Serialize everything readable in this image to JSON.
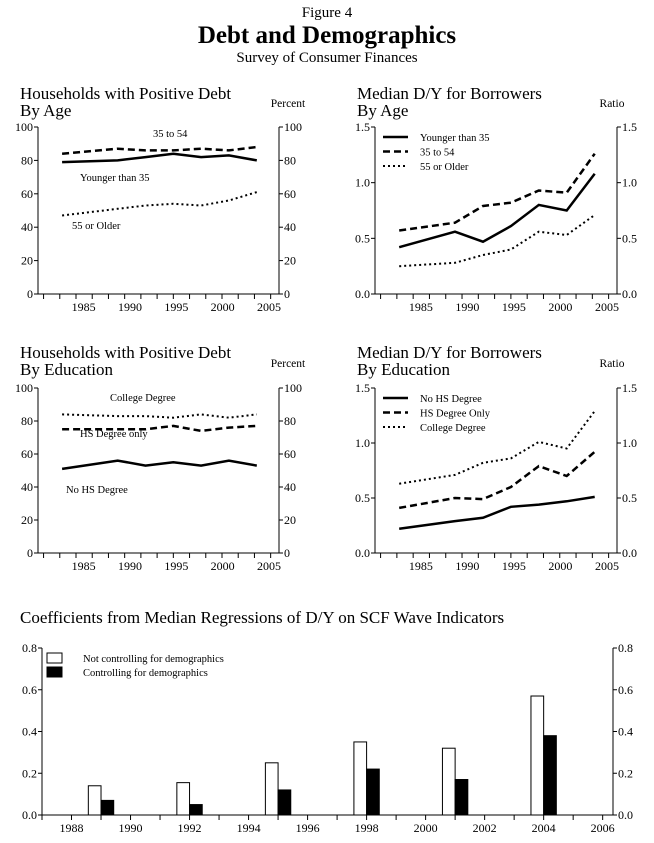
{
  "figure": {
    "label": "Figure 4",
    "title": "Debt and Demographics",
    "subtitle": "Survey of Consumer Finances"
  },
  "chart_data": [
    {
      "type": "line",
      "title": [
        "Households with Positive Debt",
        "By Age"
      ],
      "unit_label": "Percent",
      "ylim": [
        0,
        100
      ],
      "yticks": [
        "0",
        "20",
        "40",
        "60",
        "80",
        "100"
      ],
      "ytick_values": [
        0,
        20,
        40,
        60,
        80,
        100
      ],
      "xticks": [
        "1985",
        "1990",
        "1995",
        "2000",
        "2005"
      ],
      "xtick_values": [
        1985,
        1990,
        1995,
        2000,
        2005
      ],
      "x": [
        1983,
        1989,
        1992,
        1995,
        1998,
        2001,
        2004
      ],
      "legend": "inline-labels",
      "series": [
        {
          "name": "35 to 54",
          "style": "dashed",
          "values": [
            84,
            87,
            86,
            86,
            87,
            86,
            88
          ]
        },
        {
          "name": "Younger than 35",
          "style": "solid",
          "values": [
            79,
            80,
            82,
            84,
            82,
            83,
            80
          ]
        },
        {
          "name": "55 or Older",
          "style": "dotted",
          "values": [
            47,
            51,
            53,
            54,
            53,
            56,
            61
          ]
        }
      ]
    },
    {
      "type": "line",
      "title": [
        "Median D/Y for Borrowers",
        "By Age"
      ],
      "unit_label": "Ratio",
      "ylim": [
        0,
        1.5
      ],
      "yticks": [
        "0.0",
        "0.5",
        "1.0",
        "1.5"
      ],
      "ytick_values": [
        0,
        0.5,
        1.0,
        1.5
      ],
      "xticks": [
        "1985",
        "1990",
        "1995",
        "2000",
        "2005"
      ],
      "xtick_values": [
        1985,
        1990,
        1995,
        2000,
        2005
      ],
      "x": [
        1983,
        1989,
        1992,
        1995,
        1998,
        2001,
        2004
      ],
      "legend": "top-left",
      "series": [
        {
          "name": "Younger than 35",
          "style": "solid",
          "values": [
            0.42,
            0.56,
            0.47,
            0.61,
            0.8,
            0.75,
            1.08
          ]
        },
        {
          "name": "35 to 54",
          "style": "dashed",
          "values": [
            0.57,
            0.64,
            0.79,
            0.82,
            0.93,
            0.91,
            1.26
          ]
        },
        {
          "name": "55 or Older",
          "style": "dotted",
          "values": [
            0.25,
            0.28,
            0.35,
            0.4,
            0.56,
            0.53,
            0.71
          ]
        }
      ]
    },
    {
      "type": "line",
      "title": [
        "Households with Positive Debt",
        "By Education"
      ],
      "unit_label": "Percent",
      "ylim": [
        0,
        100
      ],
      "yticks": [
        "0",
        "20",
        "40",
        "60",
        "80",
        "100"
      ],
      "ytick_values": [
        0,
        20,
        40,
        60,
        80,
        100
      ],
      "xticks": [
        "1985",
        "1990",
        "1995",
        "2000",
        "2005"
      ],
      "xtick_values": [
        1985,
        1990,
        1995,
        2000,
        2005
      ],
      "x": [
        1983,
        1989,
        1992,
        1995,
        1998,
        2001,
        2004
      ],
      "legend": "inline-labels",
      "series": [
        {
          "name": "College Degree",
          "style": "dotted",
          "values": [
            84,
            83,
            83,
            82,
            84,
            82,
            84
          ]
        },
        {
          "name": "HS Degree only",
          "style": "dashed",
          "values": [
            75,
            75,
            75,
            77,
            74,
            76,
            77
          ]
        },
        {
          "name": "No HS Degree",
          "style": "solid",
          "values": [
            51,
            56,
            53,
            55,
            53,
            56,
            53
          ]
        }
      ]
    },
    {
      "type": "line",
      "title": [
        "Median D/Y for Borrowers",
        "By Education"
      ],
      "unit_label": "Ratio",
      "ylim": [
        0,
        1.5
      ],
      "yticks": [
        "0.0",
        "0.5",
        "1.0",
        "1.5"
      ],
      "ytick_values": [
        0,
        0.5,
        1.0,
        1.5
      ],
      "xticks": [
        "1985",
        "1990",
        "1995",
        "2000",
        "2005"
      ],
      "xtick_values": [
        1985,
        1990,
        1995,
        2000,
        2005
      ],
      "x": [
        1983,
        1989,
        1992,
        1995,
        1998,
        2001,
        2004
      ],
      "legend": "top-left",
      "series": [
        {
          "name": "No HS Degree",
          "style": "solid",
          "values": [
            0.22,
            0.29,
            0.32,
            0.42,
            0.44,
            0.47,
            0.51
          ]
        },
        {
          "name": "HS Degree Only",
          "style": "dashed",
          "values": [
            0.41,
            0.5,
            0.49,
            0.6,
            0.79,
            0.7,
            0.92
          ]
        },
        {
          "name": "College Degree",
          "style": "dotted",
          "values": [
            0.63,
            0.71,
            0.82,
            0.86,
            1.01,
            0.95,
            1.29
          ]
        }
      ]
    },
    {
      "type": "bar",
      "title": [
        "Coefficients from Median Regressions of D/Y on SCF Wave Indicators"
      ],
      "ylim": [
        0,
        0.8
      ],
      "yticks": [
        "0.0",
        "0.2",
        "0.4",
        "0.6",
        "0.8"
      ],
      "ytick_values": [
        0,
        0.2,
        0.4,
        0.6,
        0.8
      ],
      "xticks": [
        "1988",
        "1990",
        "1992",
        "1994",
        "1996",
        "1998",
        "2000",
        "2002",
        "2004",
        "2006"
      ],
      "xtick_values": [
        1988,
        1990,
        1992,
        1994,
        1996,
        1998,
        2000,
        2002,
        2004,
        2006
      ],
      "x": [
        1989,
        1992,
        1995,
        1998,
        2001,
        2004
      ],
      "legend": "top-left",
      "series": [
        {
          "name": "Not controlling for demographics",
          "color": "#ffffff",
          "values": [
            0.14,
            0.155,
            0.25,
            0.35,
            0.32,
            0.57
          ]
        },
        {
          "name": "Controlling for demographics",
          "color": "#000000",
          "values": [
            0.07,
            0.05,
            0.12,
            0.22,
            0.17,
            0.38
          ]
        }
      ]
    }
  ]
}
